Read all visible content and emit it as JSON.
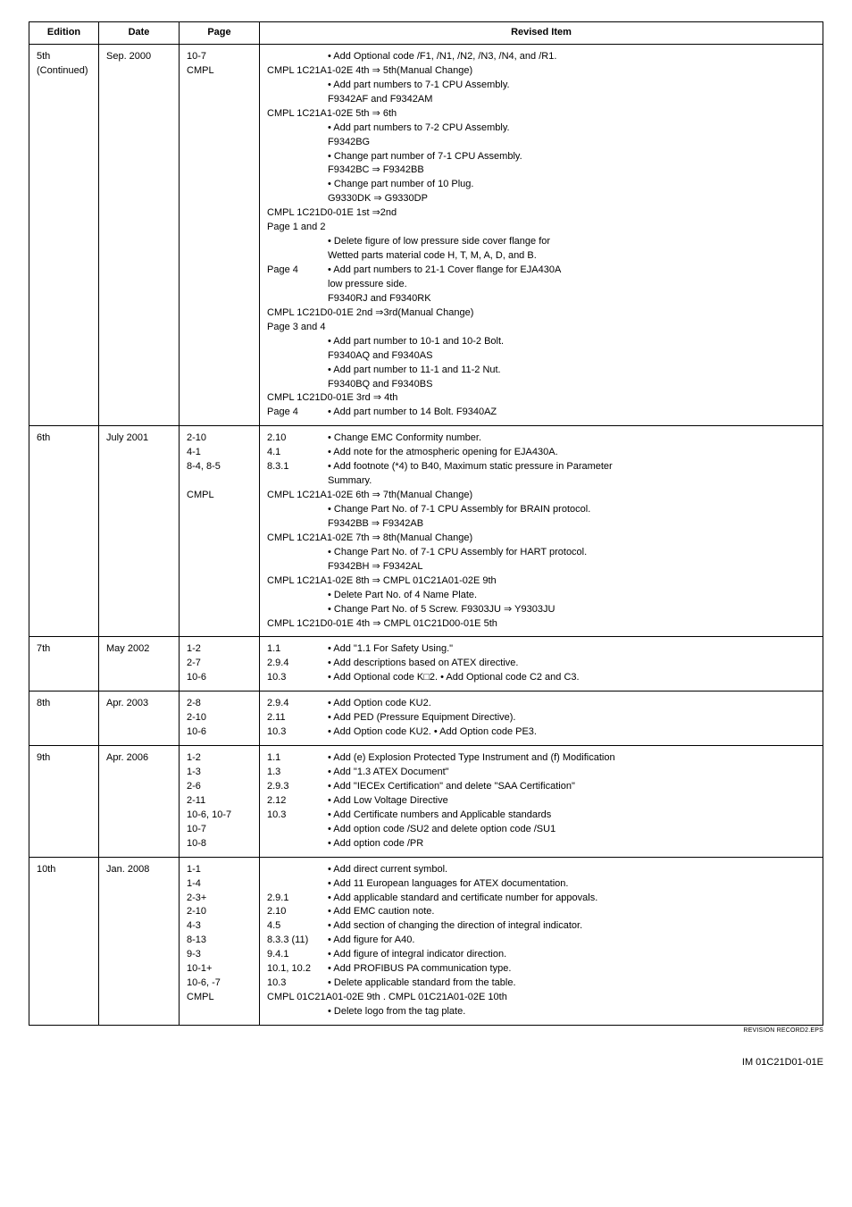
{
  "headers": {
    "edition": "Edition",
    "date": "Date",
    "page": "Page",
    "revised": "Revised Item"
  },
  "rows": [
    {
      "edition": "5th\n(Continued)",
      "date": "Sep. 2000",
      "page": "10-7\nCMPL",
      "rev": [
        {
          "ref": "",
          "text": "• Add Optional code /F1, /N1, /N2, /N3, /N4, and /R1.",
          "indent": 2
        },
        {
          "ref": "",
          "text": "CMPL 1C21A1-02E 4th ⇒ 5th(Manual Change)",
          "indent": 0
        },
        {
          "ref": "",
          "text": "• Add part numbers to 7-1 CPU Assembly.",
          "indent": 2
        },
        {
          "ref": "",
          "text": "F9342AF and F9342AM",
          "indent": 2
        },
        {
          "ref": "",
          "text": "CMPL 1C21A1-02E 5th ⇒ 6th",
          "indent": 0
        },
        {
          "ref": "",
          "text": "• Add part numbers to 7-2 CPU Assembly.",
          "indent": 2
        },
        {
          "ref": "",
          "text": "F9342BG",
          "indent": 2
        },
        {
          "ref": "",
          "text": "• Change part number of 7-1 CPU Assembly.",
          "indent": 2
        },
        {
          "ref": "",
          "text": "F9342BC ⇒ F9342BB",
          "indent": 2
        },
        {
          "ref": "",
          "text": "• Change part number of 10 Plug.",
          "indent": 2
        },
        {
          "ref": "",
          "text": "G9330DK ⇒ G9330DP",
          "indent": 2
        },
        {
          "ref": "",
          "text": "CMPL 1C21D0-01E 1st ⇒2nd",
          "indent": 0
        },
        {
          "ref": "",
          "text": "Page 1 and 2",
          "indent": 0
        },
        {
          "ref": "",
          "text": "• Delete figure of low pressure side cover flange for",
          "indent": 2
        },
        {
          "ref": "",
          "text": "Wetted parts material code H, T, M, A, D, and B.",
          "indent": 2
        },
        {
          "ref": "Page 4",
          "text": "• Add part numbers to 21-1 Cover flange for EJA430A",
          "indent": 0
        },
        {
          "ref": "",
          "text": "low pressure side.",
          "indent": 2
        },
        {
          "ref": "",
          "text": "F9340RJ and F9340RK",
          "indent": 2
        },
        {
          "ref": "",
          "text": "CMPL 1C21D0-01E 2nd ⇒3rd(Manual Change)",
          "indent": 0
        },
        {
          "ref": "",
          "text": "Page 3 and 4",
          "indent": 0
        },
        {
          "ref": "",
          "text": "• Add part number to 10-1 and 10-2 Bolt.",
          "indent": 2
        },
        {
          "ref": "",
          "text": "F9340AQ and F9340AS",
          "indent": 2
        },
        {
          "ref": "",
          "text": "• Add part number to 11-1 and 11-2 Nut.",
          "indent": 2
        },
        {
          "ref": "",
          "text": "F9340BQ and F9340BS",
          "indent": 2
        },
        {
          "ref": "",
          "text": "CMPL 1C21D0-01E 3rd ⇒ 4th",
          "indent": 0
        },
        {
          "ref": "Page 4",
          "text": "• Add part number to 14 Bolt. F9340AZ",
          "indent": 0
        }
      ]
    },
    {
      "edition": "6th",
      "date": "July 2001",
      "page": "2-10\n4-1\n8-4, 8-5\n\nCMPL",
      "rev": [
        {
          "ref": "2.10",
          "text": "• Change EMC Conformity number.",
          "indent": 0
        },
        {
          "ref": "4.1",
          "text": "• Add note for the atmospheric opening for EJA430A.",
          "indent": 0
        },
        {
          "ref": "8.3.1",
          "text": "• Add footnote (*4) to B40, Maximum static pressure in Parameter",
          "indent": 0
        },
        {
          "ref": "",
          "text": "Summary.",
          "indent": 2
        },
        {
          "ref": "",
          "text": "CMPL 1C21A1-02E 6th ⇒ 7th(Manual Change)",
          "indent": 0
        },
        {
          "ref": "",
          "text": "• Change Part No. of 7-1 CPU Assembly for BRAIN protocol.",
          "indent": 2
        },
        {
          "ref": "",
          "text": "F9342BB ⇒ F9342AB",
          "indent": 2
        },
        {
          "ref": "",
          "text": "CMPL 1C21A1-02E 7th ⇒ 8th(Manual Change)",
          "indent": 0
        },
        {
          "ref": "",
          "text": "• Change Part No. of 7-1 CPU Assembly for HART protocol.",
          "indent": 2
        },
        {
          "ref": "",
          "text": "F9342BH ⇒ F9342AL",
          "indent": 2
        },
        {
          "ref": "",
          "text": "CMPL 1C21A1-02E 8th ⇒ CMPL 01C21A01-02E 9th",
          "indent": 0
        },
        {
          "ref": "",
          "text": "• Delete Part No. of 4 Name Plate.",
          "indent": 2
        },
        {
          "ref": "",
          "text": "• Change Part No. of 5 Screw. F9303JU ⇒ Y9303JU",
          "indent": 2
        },
        {
          "ref": "",
          "text": "CMPL 1C21D0-01E 4th ⇒ CMPL 01C21D00-01E 5th",
          "indent": 0
        }
      ]
    },
    {
      "edition": "7th",
      "date": "May 2002",
      "page": "1-2\n2-7\n10-6",
      "rev": [
        {
          "ref": "1.1",
          "text": "• Add \"1.1 For Safety Using.\"",
          "indent": 0
        },
        {
          "ref": "2.9.4",
          "text": "• Add descriptions based on ATEX directive.",
          "indent": 0
        },
        {
          "ref": "10.3",
          "text": "• Add Optional code K□2.  • Add Optional code C2 and C3.",
          "indent": 0
        }
      ]
    },
    {
      "edition": "8th",
      "date": "Apr. 2003",
      "page": "2-8\n2-10\n10-6",
      "rev": [
        {
          "ref": "2.9.4",
          "text": "• Add Option code KU2.",
          "indent": 0
        },
        {
          "ref": "2.11",
          "text": "• Add PED (Pressure Equipment Directive).",
          "indent": 0
        },
        {
          "ref": "10.3",
          "text": "• Add Option code KU2.  • Add Option code PE3.",
          "indent": 0
        }
      ]
    },
    {
      "edition": "9th",
      "date": "Apr. 2006",
      "page": "1-2\n1-3\n2-6\n2-11\n10-6, 10-7\n10-7\n10-8",
      "rev": [
        {
          "ref": "1.1",
          "text": "• Add (e) Explosion Protected Type Instrument and (f) Modification",
          "indent": 0
        },
        {
          "ref": "1.3",
          "text": "• Add \"1.3 ATEX Document\"",
          "indent": 0
        },
        {
          "ref": "2.9.3",
          "text": "• Add  \"IECEx Certification\" and delete  \"SAA Certification\"",
          "indent": 0
        },
        {
          "ref": "2.12",
          "text": "• Add Low Voltage Directive",
          "indent": 0
        },
        {
          "ref": "10.3",
          "text": "• Add Certificate numbers and Applicable standards",
          "indent": 0
        },
        {
          "ref": "",
          "text": "• Add option code /SU2 and delete option code /SU1",
          "indent": 2
        },
        {
          "ref": "",
          "text": "• Add option code /PR",
          "indent": 2
        }
      ]
    },
    {
      "edition": "10th",
      "date": "Jan. 2008",
      "page": "1-1\n1-4\n2-3+\n2-10\n4-3\n8-13\n9-3\n10-1+\n10-6, -7\nCMPL",
      "rev": [
        {
          "ref": "",
          "text": "• Add direct current symbol.",
          "indent": 2
        },
        {
          "ref": "",
          "text": "• Add 11 European languages for ATEX documentation.",
          "indent": 2
        },
        {
          "ref": "2.9.1",
          "text": "• Add applicable standard and certificate number for appovals.",
          "indent": 0
        },
        {
          "ref": "2.10",
          "text": "• Add EMC caution note.",
          "indent": 0
        },
        {
          "ref": "4.5",
          "text": "• Add section of changing the direction of integral indicator.",
          "indent": 0
        },
        {
          "ref": "8.3.3 (11)",
          "text": "• Add figure for A40.",
          "indent": 0
        },
        {
          "ref": "9.4.1",
          "text": "• Add figure of integral indicator direction.",
          "indent": 0
        },
        {
          "ref": "10.1, 10.2",
          "text": "• Add PROFIBUS PA communication type.",
          "indent": 0
        },
        {
          "ref": "10.3",
          "text": "• Delete applicable standard from the table.",
          "indent": 0
        },
        {
          "ref": "",
          "text": "CMPL 01C21A01-02E 9th . CMPL 01C21A01-02E 10th",
          "indent": 0
        },
        {
          "ref": "",
          "text": "• Delete logo from the tag plate.",
          "indent": 2
        }
      ]
    }
  ],
  "caption": "REVISION RECORD2.EPS",
  "footer": "IM 01C21D01-01E"
}
